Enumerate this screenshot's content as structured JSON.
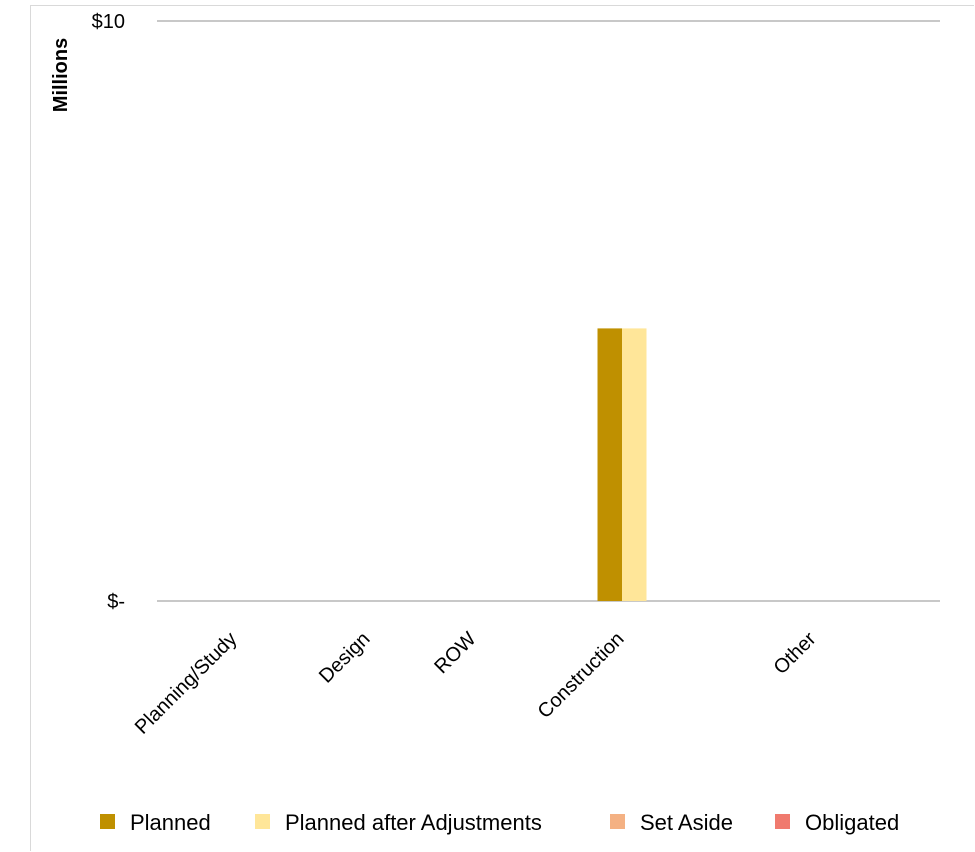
{
  "chart_data": {
    "type": "bar",
    "title": "",
    "xlabel": "",
    "ylabel": "Millions",
    "ylim": [
      0,
      10
    ],
    "y_tick_labels": [
      {
        "value": 10,
        "label": "$10"
      },
      {
        "value": 0,
        "label": "$-"
      }
    ],
    "categories": [
      "Planning/Study",
      "Design",
      "ROW",
      "Construction",
      "Other"
    ],
    "series": [
      {
        "name": "Planned",
        "color": "#bf9000",
        "values": [
          0,
          0,
          0,
          4.7,
          0
        ]
      },
      {
        "name": "Planned after Adjustments",
        "color": "#ffe699",
        "values": [
          0,
          0,
          0,
          4.7,
          0
        ]
      },
      {
        "name": "Set Aside",
        "color": "#f4b183",
        "values": [
          0,
          0,
          0,
          0,
          0
        ]
      },
      {
        "name": "Obligated",
        "color": "#f07a6e",
        "values": [
          0,
          0,
          0,
          0,
          0
        ]
      }
    ],
    "grid": true,
    "legend_position": "bottom"
  }
}
